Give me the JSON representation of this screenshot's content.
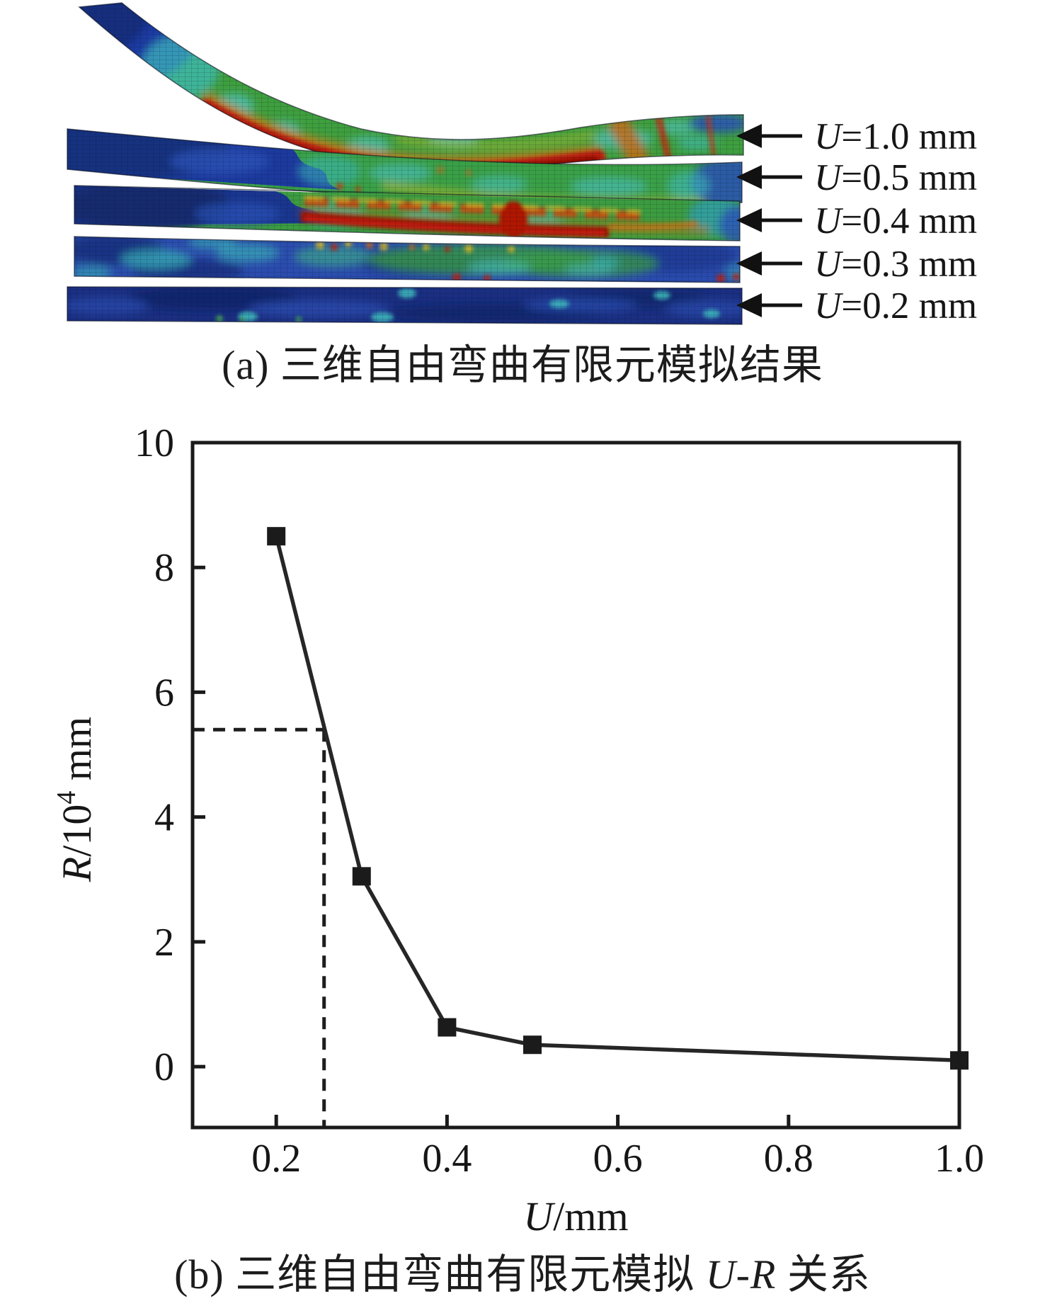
{
  "panel_a": {
    "caption": "(a) 三维自由弯曲有限元模拟结果",
    "annotations": [
      {
        "label": "U=1.0 mm"
      },
      {
        "label": "U=0.5 mm"
      },
      {
        "label": "U=0.4 mm"
      },
      {
        "label": "U=0.3 mm"
      },
      {
        "label": "U=0.2 mm"
      }
    ],
    "colormap_colors": {
      "low": "#1b2f82",
      "mid": "#3a9c46",
      "high": "#b01708"
    }
  },
  "panel_b": {
    "caption_pre": "(b) 三维自由弯曲有限元模拟 ",
    "caption_italic": "U-R",
    "caption_post": " 关系"
  },
  "chart_data": {
    "type": "line",
    "title": "",
    "x": [
      0.2,
      0.3,
      0.4,
      0.5,
      1.0
    ],
    "y": [
      8.5,
      3.05,
      0.63,
      0.35,
      0.1
    ],
    "xlabel": "U/mm",
    "ylabel": "R/10^4 mm",
    "xlabel_parts": {
      "italic": "U",
      "rest": "/mm"
    },
    "ylabel_parts": {
      "italic": "R",
      "pre": "/10",
      "sup": "4",
      "post": " mm"
    },
    "xlim": [
      0.102,
      1.0
    ],
    "ylim": [
      -0.975,
      10
    ],
    "xticks": [
      {
        "v": 0.2,
        "label": "0.2"
      },
      {
        "v": 0.4,
        "label": "0.4"
      },
      {
        "v": 0.6,
        "label": "0.6"
      },
      {
        "v": 0.8,
        "label": "0.8"
      },
      {
        "v": 1.0,
        "label": "1.0"
      }
    ],
    "yticks": [
      {
        "v": 0,
        "label": "0"
      },
      {
        "v": 2,
        "label": "2"
      },
      {
        "v": 4,
        "label": "4"
      },
      {
        "v": 6,
        "label": "6"
      },
      {
        "v": 8,
        "label": "8"
      },
      {
        "v": 10,
        "label": "10"
      }
    ],
    "grid": false,
    "legend": null,
    "marker": "square",
    "line_color": "#262626",
    "guide": {
      "u": 0.256,
      "r": 5.4,
      "style": "dashed"
    }
  }
}
